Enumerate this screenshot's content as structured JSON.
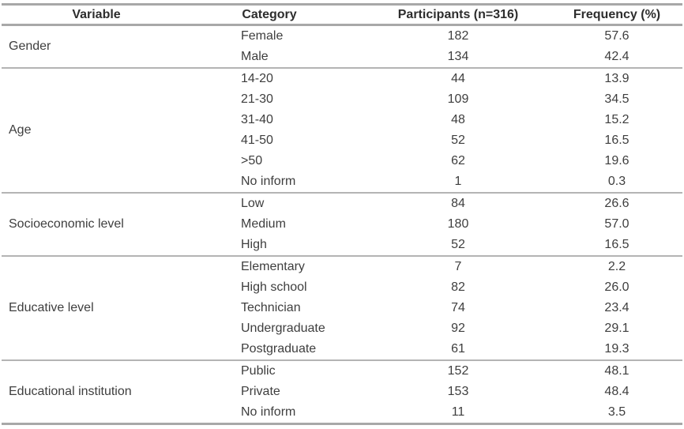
{
  "table": {
    "columns": [
      "Variable",
      "Category",
      "Participants (n=316)",
      "Frequency (%)"
    ],
    "groups": [
      {
        "variable": "Gender",
        "rows": [
          [
            "Female",
            "182",
            "57.6"
          ],
          [
            "Male",
            "134",
            "42.4"
          ]
        ]
      },
      {
        "variable": "Age",
        "rows": [
          [
            "14-20",
            "44",
            "13.9"
          ],
          [
            "21-30",
            "109",
            "34.5"
          ],
          [
            "31-40",
            "48",
            "15.2"
          ],
          [
            "41-50",
            "52",
            "16.5"
          ],
          [
            ">50",
            "62",
            "19.6"
          ],
          [
            "No inform",
            "1",
            "0.3"
          ]
        ]
      },
      {
        "variable": "Socioeconomic level",
        "rows": [
          [
            "Low",
            "84",
            "26.6"
          ],
          [
            "Medium",
            "180",
            "57.0"
          ],
          [
            "High",
            "52",
            "16.5"
          ]
        ]
      },
      {
        "variable": "Educative level",
        "rows": [
          [
            "Elementary",
            "7",
            "2.2"
          ],
          [
            "High school",
            "82",
            "26.0"
          ],
          [
            "Technician",
            "74",
            "23.4"
          ],
          [
            "Undergraduate",
            "92",
            "29.1"
          ],
          [
            "Postgraduate",
            "61",
            "19.3"
          ]
        ]
      },
      {
        "variable": "Educational institution",
        "rows": [
          [
            "Public",
            "152",
            "48.1"
          ],
          [
            "Private",
            "153",
            "48.4"
          ],
          [
            "No inform",
            "11",
            "3.5"
          ]
        ]
      }
    ],
    "colors": {
      "thick_rule": "#a8a8a8",
      "thin_rule": "#b4b4b4",
      "header_text": "#2d2d2d",
      "body_text": "#3e3e3e",
      "background": "#ffffff"
    }
  }
}
